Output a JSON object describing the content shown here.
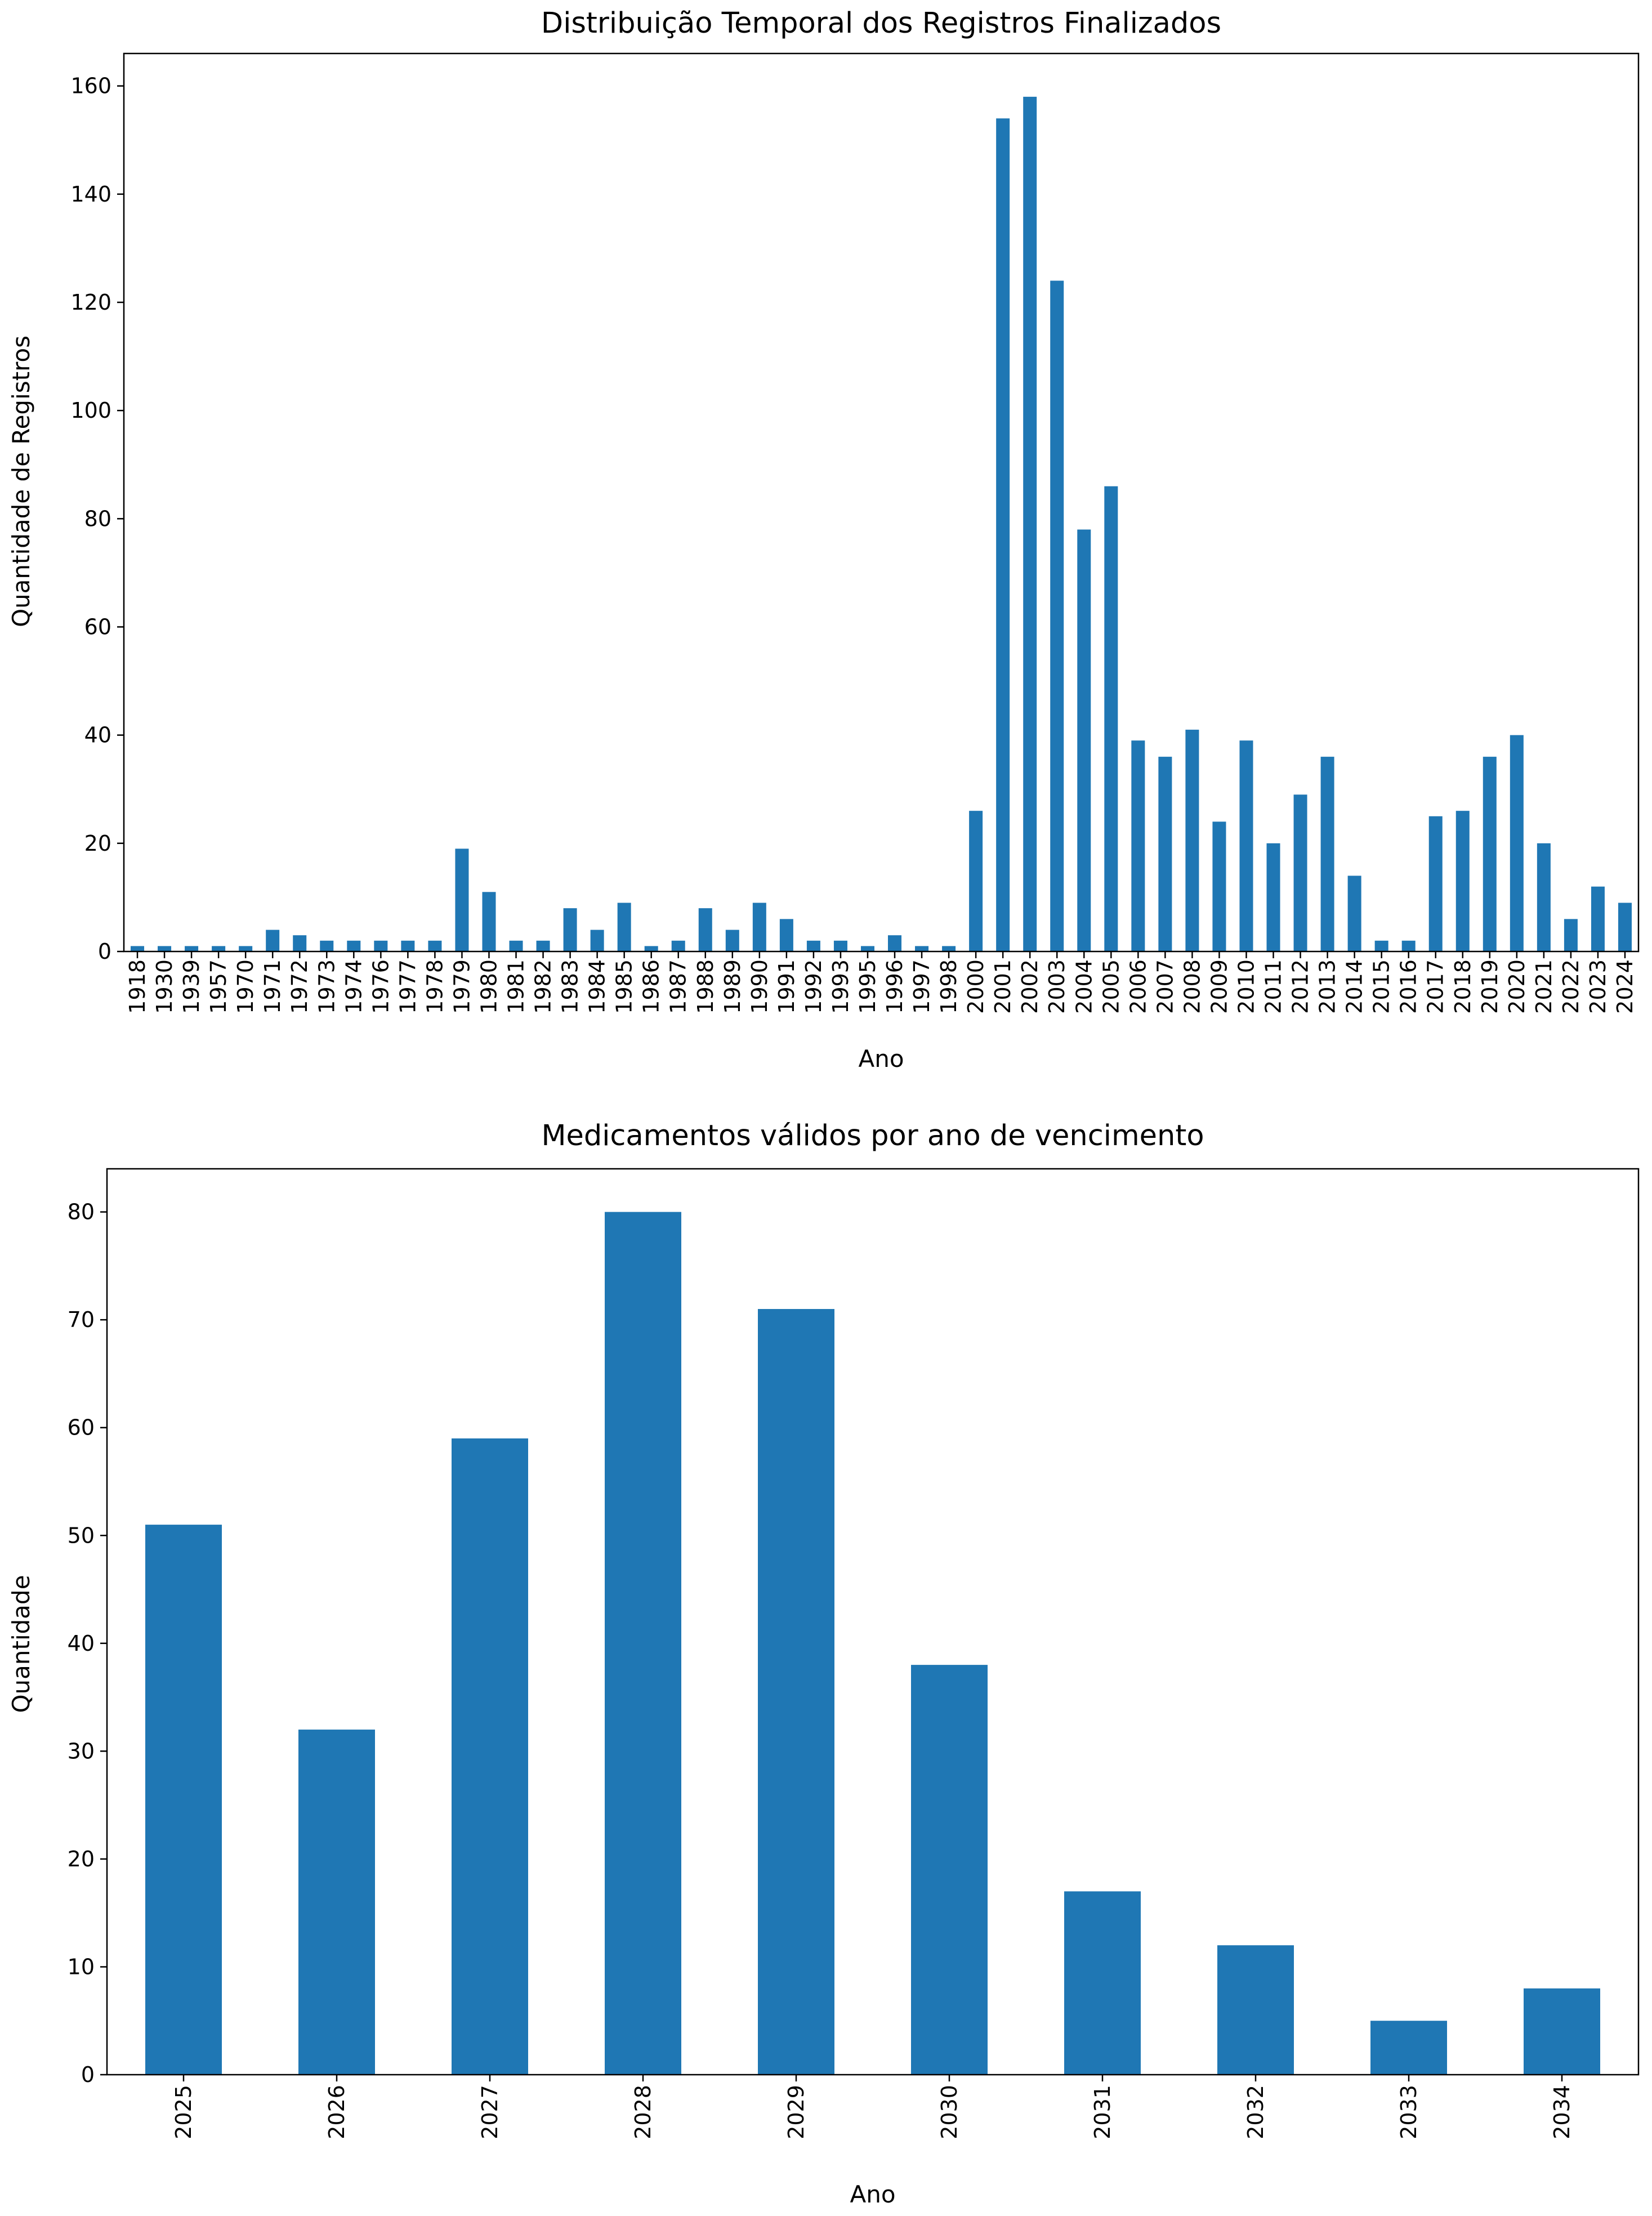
{
  "chart_data": [
    {
      "type": "bar",
      "title": "Distribuição Temporal dos Registros Finalizados",
      "xlabel": "Ano",
      "ylabel": "Quantidade de Registros",
      "ylim": [
        0,
        166
      ],
      "yticks": [
        0,
        20,
        40,
        60,
        80,
        100,
        120,
        140,
        160
      ],
      "grid": false,
      "legend": "none",
      "bar_color": "#1f77b4",
      "categories": [
        "1918",
        "1930",
        "1939",
        "1957",
        "1970",
        "1971",
        "1972",
        "1973",
        "1974",
        "1976",
        "1977",
        "1978",
        "1979",
        "1980",
        "1981",
        "1982",
        "1983",
        "1984",
        "1985",
        "1986",
        "1987",
        "1988",
        "1989",
        "1990",
        "1991",
        "1992",
        "1993",
        "1995",
        "1996",
        "1997",
        "1998",
        "2000",
        "2001",
        "2002",
        "2003",
        "2004",
        "2005",
        "2006",
        "2007",
        "2008",
        "2009",
        "2010",
        "2011",
        "2012",
        "2013",
        "2014",
        "2015",
        "2016",
        "2017",
        "2018",
        "2019",
        "2020",
        "2021",
        "2022",
        "2023",
        "2024"
      ],
      "values": [
        1,
        1,
        1,
        1,
        1,
        4,
        3,
        2,
        2,
        2,
        2,
        2,
        19,
        11,
        2,
        2,
        8,
        4,
        9,
        1,
        2,
        8,
        4,
        9,
        6,
        2,
        2,
        1,
        3,
        1,
        1,
        26,
        154,
        158,
        124,
        78,
        86,
        39,
        36,
        41,
        24,
        39,
        20,
        29,
        36,
        14,
        2,
        2,
        25,
        26,
        36,
        40,
        20,
        6,
        12,
        9
      ]
    },
    {
      "type": "bar",
      "title": "Medicamentos válidos por ano de vencimento",
      "xlabel": "Ano",
      "ylabel": "Quantidade",
      "ylim": [
        0,
        84
      ],
      "yticks": [
        0,
        10,
        20,
        30,
        40,
        50,
        60,
        70,
        80
      ],
      "grid": false,
      "legend": "none",
      "bar_color": "#1f77b4",
      "categories": [
        "2025",
        "2026",
        "2027",
        "2028",
        "2029",
        "2030",
        "2031",
        "2032",
        "2033",
        "2034"
      ],
      "values": [
        51,
        32,
        59,
        80,
        71,
        38,
        17,
        12,
        5,
        8
      ]
    }
  ]
}
